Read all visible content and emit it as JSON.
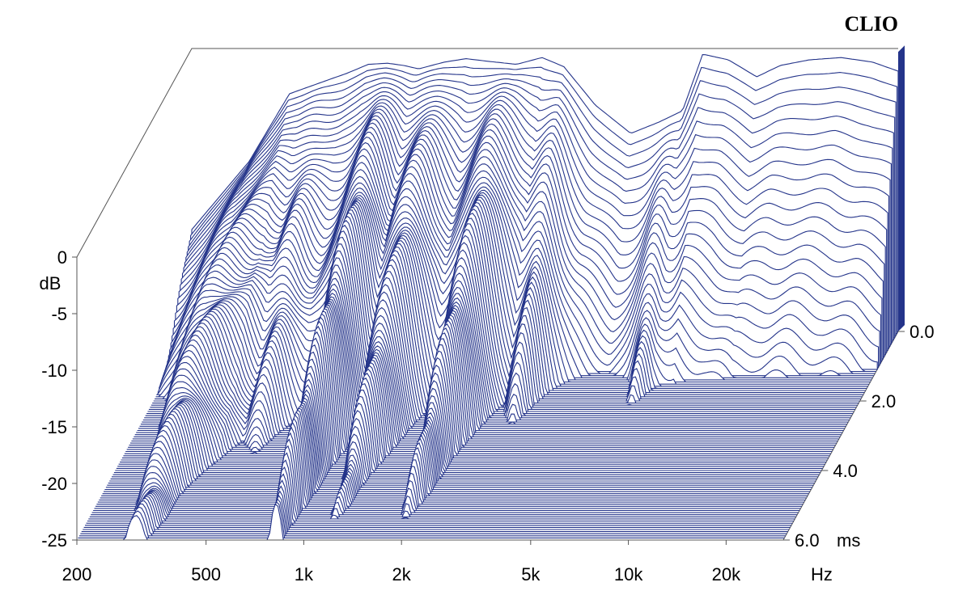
{
  "brand": "CLIO",
  "chart_data": {
    "type": "waterfall",
    "x": {
      "unit": "Hz",
      "scale": "log",
      "range": [
        200,
        30000
      ],
      "ticks": [
        {
          "value": 200,
          "label": "200"
        },
        {
          "value": 500,
          "label": "500"
        },
        {
          "value": 1000,
          "label": "1k"
        },
        {
          "value": 2000,
          "label": "2k"
        },
        {
          "value": 5000,
          "label": "5k"
        },
        {
          "value": 10000,
          "label": "10k"
        },
        {
          "value": 20000,
          "label": "20k"
        }
      ]
    },
    "y": {
      "unit": "dB",
      "range": [
        -25,
        0
      ],
      "ticks": [
        {
          "value": 0,
          "label": "0"
        },
        {
          "value": -5,
          "label": "-5"
        },
        {
          "value": -10,
          "label": "-10"
        },
        {
          "value": -15,
          "label": "-15"
        },
        {
          "value": -20,
          "label": "-20"
        },
        {
          "value": -25,
          "label": "-25"
        }
      ]
    },
    "z": {
      "unit": "ms",
      "range": [
        0,
        6
      ],
      "ticks": [
        {
          "value": 0,
          "label": "0.0"
        },
        {
          "value": 2,
          "label": "2.0"
        },
        {
          "value": 4,
          "label": "4.0"
        },
        {
          "value": 6,
          "label": "6.0"
        }
      ]
    },
    "slice_count": 100,
    "colors": {
      "line": "#24348a",
      "fill": "#ffffff",
      "axis": "#555555"
    },
    "grid": false,
    "initial_response_db": [
      [
        200,
        -16
      ],
      [
        300,
        -10
      ],
      [
        400,
        -4
      ],
      [
        500,
        -3
      ],
      [
        600,
        -2.2
      ],
      [
        700,
        -1.4
      ],
      [
        800,
        -1.3
      ],
      [
        900,
        -1.5
      ],
      [
        1000,
        -1.8
      ],
      [
        1200,
        -1.2
      ],
      [
        1400,
        -0.9
      ],
      [
        1600,
        -1.1
      ],
      [
        2000,
        -1.4
      ],
      [
        2400,
        -0.8
      ],
      [
        2800,
        -1.6
      ],
      [
        3500,
        -5
      ],
      [
        4500,
        -7.5
      ],
      [
        5500,
        -6.5
      ],
      [
        6500,
        -5.5
      ],
      [
        7500,
        -0.5
      ],
      [
        9000,
        -1.0
      ],
      [
        11000,
        -2.5
      ],
      [
        13000,
        -1.5
      ],
      [
        16000,
        -1.0
      ],
      [
        20000,
        -0.8
      ],
      [
        25000,
        -1.2
      ],
      [
        30000,
        -2.0
      ]
    ]
  }
}
